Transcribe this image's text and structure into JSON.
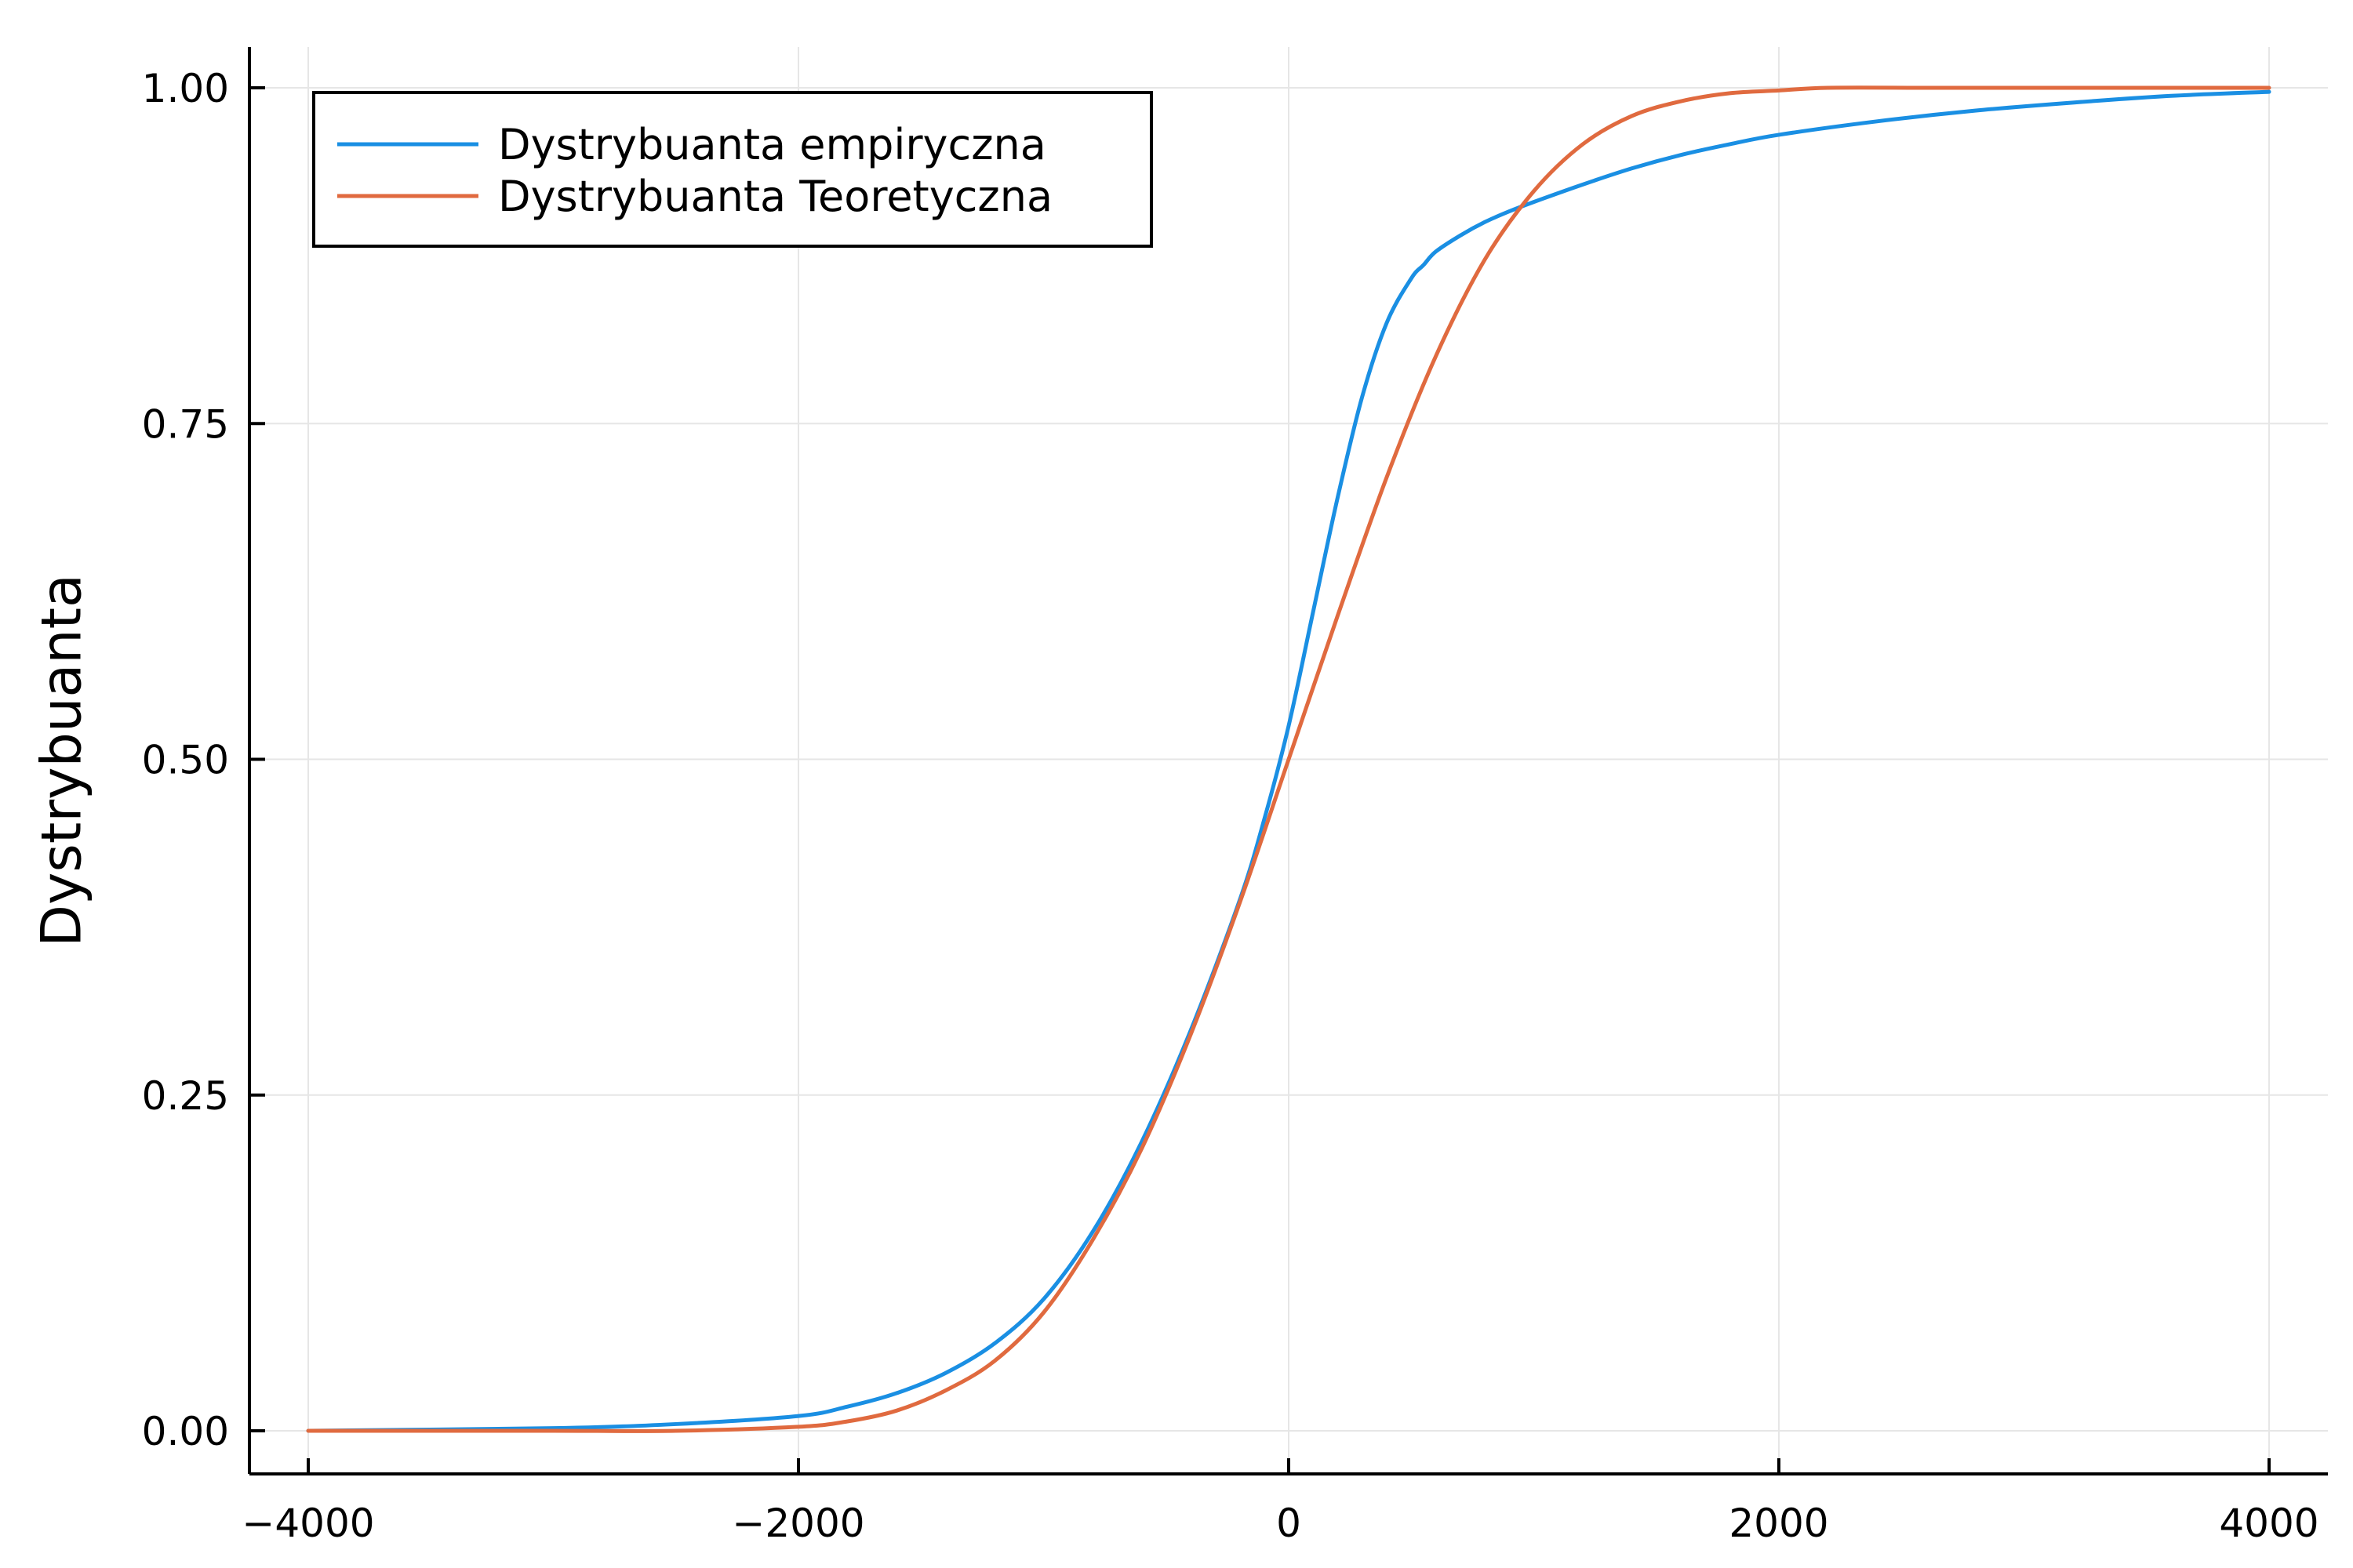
{
  "chart_data": {
    "type": "line",
    "title": "",
    "xlabel": "",
    "ylabel": "Dystrybuanta",
    "xlim": [
      -4000,
      4000
    ],
    "ylim": [
      0,
      1
    ],
    "x_ticks": [
      "−4000",
      "−2000",
      "0",
      "2000",
      "4000"
    ],
    "y_ticks": [
      "0.00",
      "0.25",
      "0.50",
      "0.75",
      "1.00"
    ],
    "grid": true,
    "legend_position": "top-left",
    "series": [
      {
        "name": "Dystrybuanta empiryczna",
        "color": "#1a8fe3",
        "x": [
          -4000,
          -3000,
          -2500,
          -2000,
          -1800,
          -1600,
          -1400,
          -1200,
          -1000,
          -800,
          -600,
          -400,
          -200,
          -100,
          0,
          100,
          200,
          300,
          400,
          500,
          550,
          600,
          700,
          800,
          900,
          1000,
          1200,
          1400,
          1600,
          1800,
          2000,
          2400,
          2800,
          3200,
          3600,
          4000
        ],
        "y": [
          0.0,
          0.002,
          0.005,
          0.011,
          0.018,
          0.028,
          0.043,
          0.065,
          0.098,
          0.148,
          0.215,
          0.298,
          0.395,
          0.455,
          0.525,
          0.61,
          0.695,
          0.77,
          0.825,
          0.858,
          0.868,
          0.878,
          0.89,
          0.9,
          0.908,
          0.915,
          0.928,
          0.94,
          0.95,
          0.958,
          0.965,
          0.975,
          0.983,
          0.989,
          0.994,
          0.997
        ]
      },
      {
        "name": "Dystrybuanta Teoretyczna",
        "color": "#e06a3f",
        "x": [
          -4000,
          -3000,
          -2500,
          -2000,
          -1800,
          -1600,
          -1400,
          -1200,
          -1000,
          -800,
          -600,
          -400,
          -200,
          0,
          200,
          400,
          600,
          800,
          1000,
          1200,
          1400,
          1600,
          1800,
          2000,
          2200,
          2600,
          3000,
          3500,
          4000
        ],
        "y": [
          0.0,
          0.0,
          0.0,
          0.003,
          0.007,
          0.015,
          0.03,
          0.052,
          0.088,
          0.142,
          0.21,
          0.295,
          0.393,
          0.5,
          0.607,
          0.71,
          0.8,
          0.872,
          0.923,
          0.958,
          0.979,
          0.99,
          0.996,
          0.998,
          1.0,
          1.0,
          1.0,
          1.0,
          1.0
        ]
      }
    ]
  }
}
